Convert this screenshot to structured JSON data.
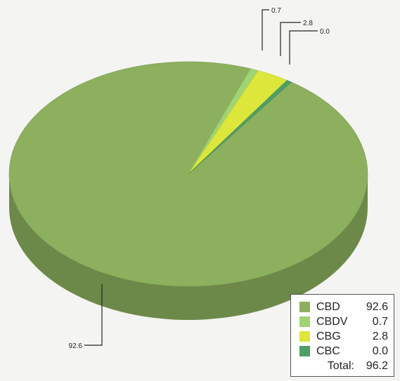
{
  "chart_data": {
    "type": "pie",
    "title": "",
    "series": [
      {
        "name": "CBD",
        "value": 92.6,
        "color": "#8cb05e"
      },
      {
        "name": "CBDV",
        "value": 0.7,
        "color": "#9fd374"
      },
      {
        "name": "CBG",
        "value": 2.8,
        "color": "#dde63a"
      },
      {
        "name": "CBC",
        "value": 0.0,
        "color": "#4f9e66"
      }
    ],
    "data_labels": [
      "92.6",
      "0.7",
      "2.8",
      "0.0"
    ],
    "legend": {
      "position": "bottom-right",
      "total_label": "Total:",
      "total_value": "96.2"
    },
    "style": "3d-pie"
  }
}
